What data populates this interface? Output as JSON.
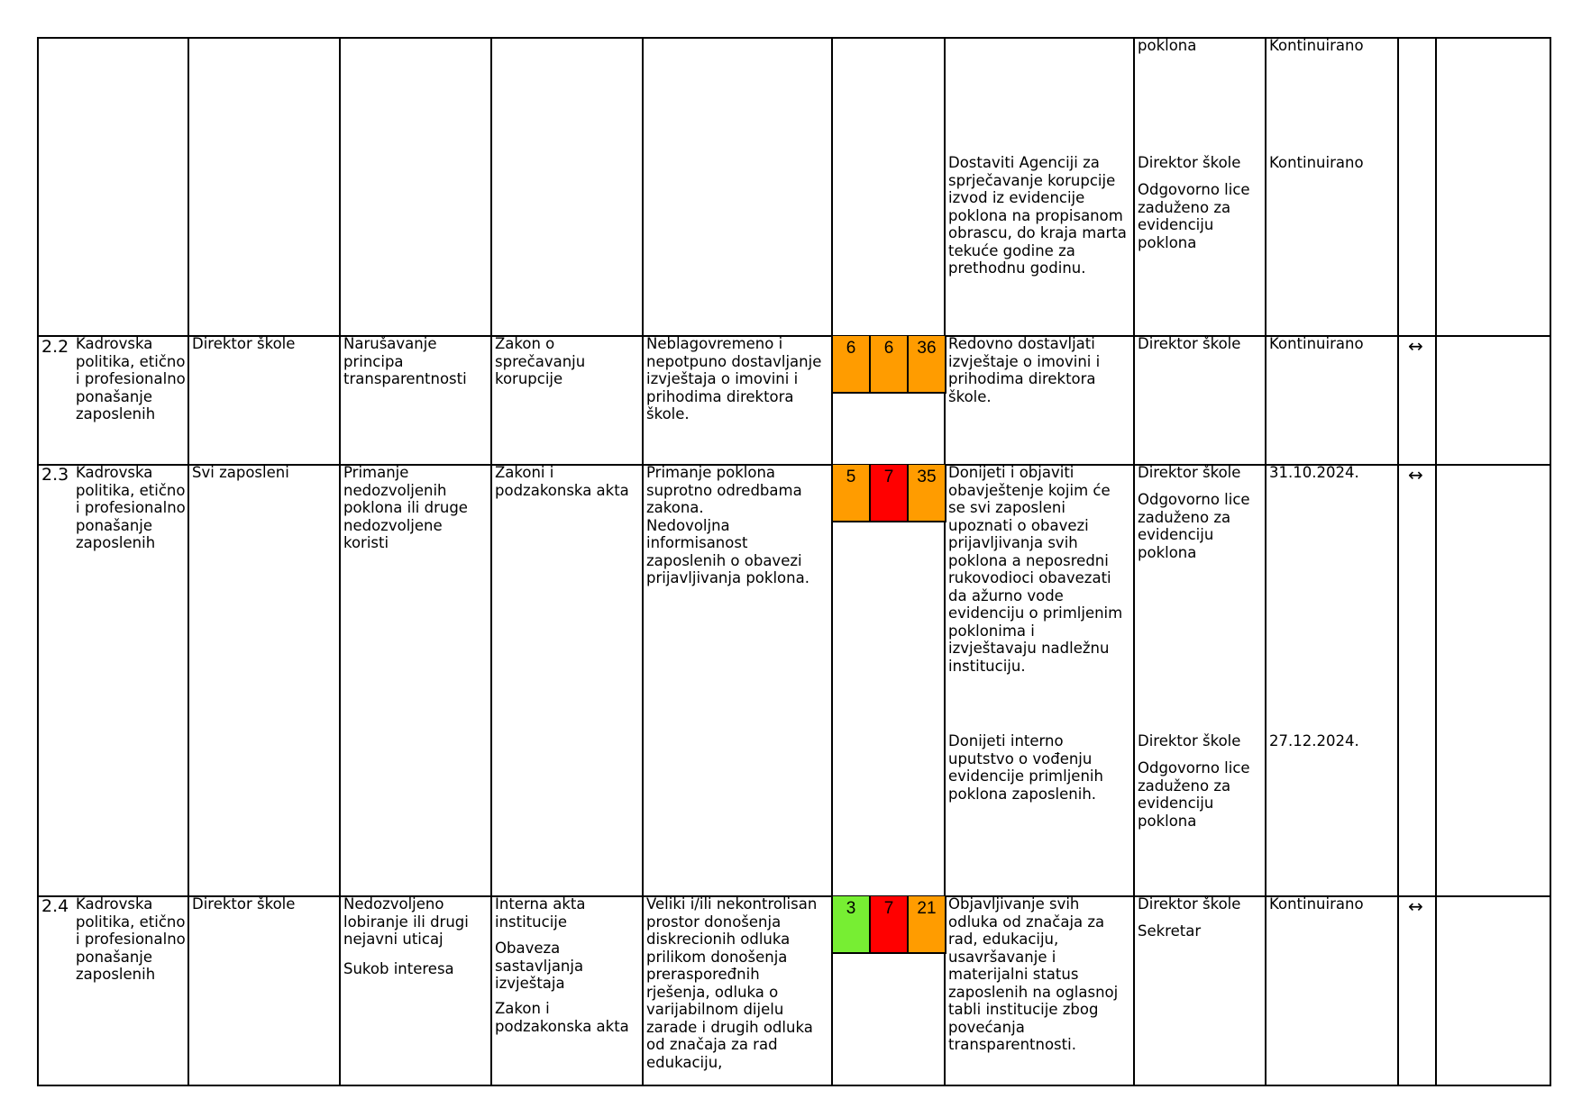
{
  "top_row": {
    "responsible_1": "poklona",
    "deadline_1": "Kontinuirano",
    "measure_2": "Dostaviti Agenciji za\nsprječavanje korupcije\nizvod iz evidencije\npoklona na propisanom\nobrascu, do kraja marta\ntekuće godine za\nprethodnu godinu.",
    "responsible_2a": "Direktor škole",
    "responsible_2b": "Odgovorno lice\nzaduženo za\nevidenciju\npoklona",
    "deadline_2": "Kontinuirano"
  },
  "rows": [
    {
      "number": "2.2",
      "area": "Kadrovska\npolitika, etično\ni profesionalno\nponašanje\nzaposlenih",
      "subject": "Direktor škole",
      "risk_name": "Narušavanje\nprincipa\ntransparentnosti",
      "legal_basis": "Zakon o\nsprečavanju\nkorupcije",
      "cause": "Neblagovremeno i\nnepotpuno dostavljanje\nizvještaja o imovini i\nprihodima direktora\nškole.",
      "risk_scores": [
        {
          "value": "6",
          "color": "#ff9c00"
        },
        {
          "value": "6",
          "color": "#ff9c00"
        },
        {
          "value": "36",
          "color": "#ff9c00"
        }
      ],
      "measures": [
        {
          "text": "Redovno dostavljati\nizvještaje o imovini i\nprihodima direktora\nškole.",
          "responsible_a": "Direktor škole",
          "responsible_b": "",
          "deadline": "Kontinuirano"
        }
      ],
      "trend": "↔"
    },
    {
      "number": "2.3",
      "area": "Kadrovska\npolitika, etično\ni profesionalno\nponašanje\nzaposlenih",
      "subject": "Svi zaposleni",
      "risk_name": "Primanje\nnedozvoljenih\npoklona ili druge\nnedozvoljene\nkoristi",
      "legal_basis": "Zakoni i\npodzakonska akta",
      "cause": "Primanje poklona\nsuprotno odredbama\nzakona.\nNedovoljna\ninformisanost\nzaposlenih o obavezi\nprijavljivanja poklona.",
      "risk_scores": [
        {
          "value": "5",
          "color": "#ff9c00"
        },
        {
          "value": "7",
          "color": "#ff0000"
        },
        {
          "value": "35",
          "color": "#ff9c00"
        }
      ],
      "measures": [
        {
          "text": "Donijeti i objaviti\nobavještenje kojim će\nse svi zaposleni\nupoznati o obavezi\nprijavljivanja svih\npoklona a neposredni\nrukovodioci obavezati\nda ažurno vode\nevidenciju o primljenim\npoklonima i\nizvještavaju  nadležnu\ninstituciju.",
          "responsible_a": "Direktor škole",
          "responsible_b": "Odgovorno lice\nzaduženo za\nevidenciju\npoklona",
          "deadline": "31.10.2024."
        },
        {
          "text": "Donijeti interno\nuputstvo o vođenju\nevidencije primljenih\npoklona zaposlenih.",
          "responsible_a": "Direktor škole",
          "responsible_b": "Odgovorno lice\nzaduženo za\nevidenciju\npoklona",
          "deadline": "27.12.2024."
        }
      ],
      "trend": "↔"
    },
    {
      "number": "2.4",
      "area": "Kadrovska\npolitika, etično\ni profesionalno\nponašanje\nzaposlenih",
      "subject": "Direktor škole",
      "risk_name_a": "Nedozvoljeno\nlobiranje ili drugi\nnejavni uticaj",
      "risk_name_b": "Sukob interesa",
      "legal_basis_a": "Interna akta\ninstitucije",
      "legal_basis_b": "Obaveza\nsastavljanja\nizvještaja",
      "legal_basis_c": "Zakon i\npodzakonska akta",
      "cause": "Veliki i/ili nekontrolisan\nprostor donošenja\ndiskrecionih odluka\nprilikom donošenja\npreraspoređnih\nrješenja, odluka o\nvarijabilnom dijelu\nzarade i drugih odluka\nod značaja za rad\nedukaciju,",
      "risk_scores": [
        {
          "value": "3",
          "color": "#77ee33"
        },
        {
          "value": "7",
          "color": "#ff0000"
        },
        {
          "value": "21",
          "color": "#ff9c00"
        }
      ],
      "measures": [
        {
          "text": "Objavljivanje svih\nodluka od značaja za\nrad, edukaciju,\nusavršavanje i\nmaterijalni status\nzaposlenih na oglasnoj\ntabli institucije zbog\npovećanja\ntransparentnosti.",
          "responsible_a": "Direktor škole",
          "responsible_b": "Sekretar",
          "deadline": "Kontinuirano"
        }
      ],
      "trend": "↔"
    }
  ]
}
